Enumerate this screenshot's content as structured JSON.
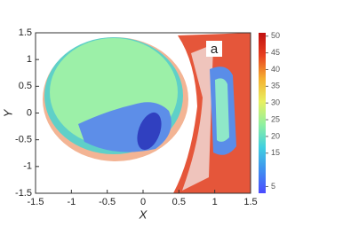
{
  "chart_data": {
    "type": "heatmap",
    "annotation": "a",
    "xlabel": "X",
    "ylabel": "Y",
    "xlim": [
      -1.5,
      1.5
    ],
    "xticks": [
      -1.5,
      -1,
      -0.5,
      0,
      0.5,
      1,
      1.5
    ],
    "ylim": [
      -1.5,
      1.5
    ],
    "yticks": [
      -1.5,
      -1,
      -0.5,
      0,
      0.5,
      1,
      1.5
    ],
    "colorbar": {
      "lim": [
        3,
        51
      ],
      "ticks": [
        5,
        15,
        20,
        25,
        30,
        35,
        40,
        45,
        50
      ],
      "colors": [
        "#4b4bff",
        "#3f8ff0",
        "#40d0e0",
        "#8ff0a0",
        "#e8f060",
        "#f5b030",
        "#e84020",
        "#c01010"
      ]
    }
  }
}
